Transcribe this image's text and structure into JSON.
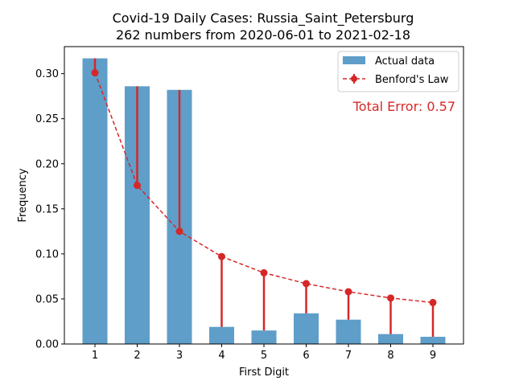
{
  "chart_data": {
    "type": "bar",
    "title_line1": "Covid-19 Daily Cases: Russia_Saint_Petersburg",
    "title_line2": "262 numbers from 2020-06-01 to 2021-02-18",
    "xlabel": "First Digit",
    "ylabel": "Frequency",
    "categories": [
      "1",
      "2",
      "3",
      "4",
      "5",
      "6",
      "7",
      "8",
      "9"
    ],
    "series": [
      {
        "name": "Actual data",
        "type": "bar",
        "color": "#5f9ec9",
        "values": [
          0.317,
          0.286,
          0.282,
          0.019,
          0.015,
          0.034,
          0.027,
          0.011,
          0.008
        ]
      },
      {
        "name": "Benford's Law",
        "type": "line-errorbar",
        "color": "#d62728",
        "values": [
          0.301,
          0.176,
          0.125,
          0.097,
          0.079,
          0.067,
          0.058,
          0.051,
          0.046
        ]
      }
    ],
    "ylim": [
      0,
      0.33
    ],
    "yticks": [
      0.0,
      0.05,
      0.1,
      0.15,
      0.2,
      0.25,
      0.3
    ],
    "ytick_labels": [
      "0.00",
      "0.05",
      "0.10",
      "0.15",
      "0.20",
      "0.25",
      "0.30"
    ],
    "grid": false,
    "legend_position": "top-right",
    "annotation": "Total Error: 0.57"
  }
}
